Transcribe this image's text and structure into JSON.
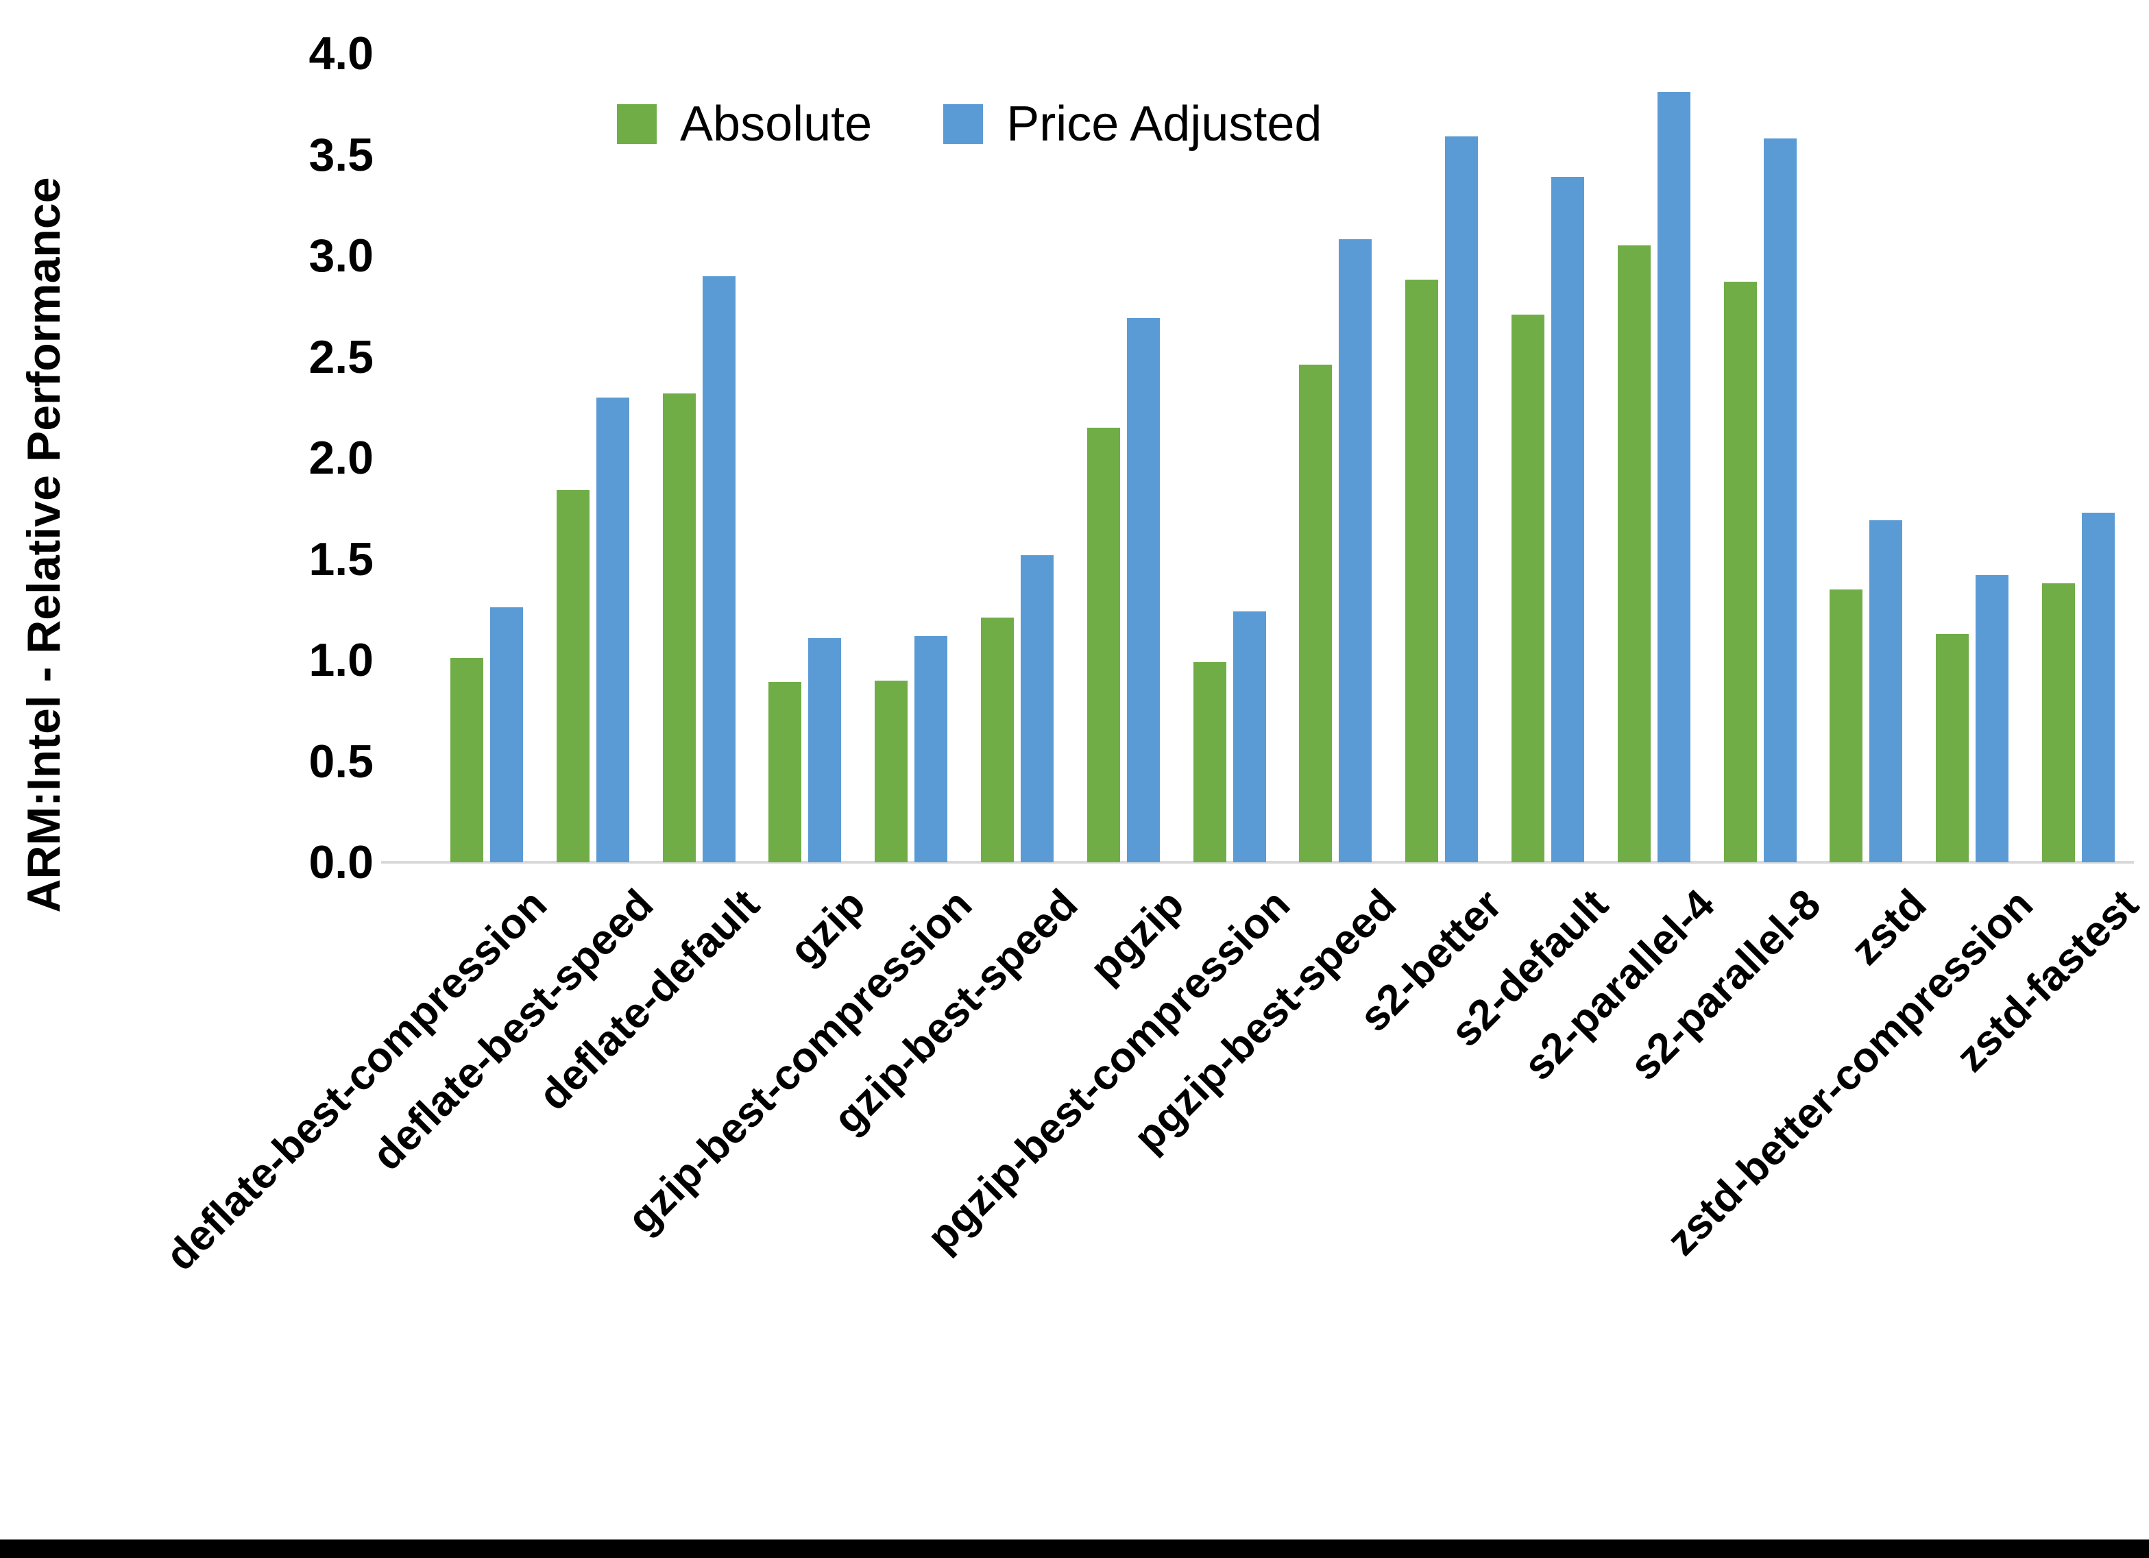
{
  "y_axis": {
    "title": "ARM:Intel - Relative Performance",
    "ticks": [
      "0.0",
      "0.5",
      "1.0",
      "1.5",
      "2.0",
      "2.5",
      "3.0",
      "3.5",
      "4.0"
    ]
  },
  "legend": [
    {
      "label": "Absolute",
      "color": "#70AD47"
    },
    {
      "label": "Price Adjusted",
      "color": "#5B9BD5"
    }
  ],
  "colors": {
    "background": "#FFFFFF",
    "axis_line": "#D9D9D9",
    "text": "#000000",
    "bottom_bar": "#000000",
    "absolute_green": "#70AD47",
    "price_adjusted_blue": "#5B9BD5"
  },
  "chart_data": {
    "type": "bar",
    "title": "",
    "xlabel": "",
    "ylabel": "ARM:Intel - Relative Performance",
    "ylim": [
      0,
      4
    ],
    "ytick_step": 0.5,
    "grid": false,
    "legend_position": "top-center",
    "categories": [
      "deflate-best-compression",
      "deflate-best-speed",
      "deflate-default",
      "gzip",
      "gzip-best-compression",
      "gzip-best-speed",
      "pgzip",
      "pgzip-best-compression",
      "pgzip-best-speed",
      "s2-better",
      "s2-default",
      "s2-parallel-4",
      "s2-parallel-8",
      "zstd",
      "zstd-better-compression",
      "zstd-fastest"
    ],
    "series": [
      {
        "name": "Absolute",
        "color": "#70AD47",
        "values": [
          1.01,
          1.84,
          2.32,
          0.89,
          0.9,
          1.21,
          2.15,
          0.99,
          2.46,
          2.88,
          2.71,
          3.05,
          2.87,
          1.35,
          1.13,
          1.38
        ]
      },
      {
        "name": "Price Adjusted",
        "color": "#5B9BD5",
        "values": [
          1.26,
          2.3,
          2.9,
          1.11,
          1.12,
          1.52,
          2.69,
          1.24,
          3.08,
          3.59,
          3.39,
          3.81,
          3.58,
          1.69,
          1.42,
          1.73
        ]
      }
    ]
  }
}
